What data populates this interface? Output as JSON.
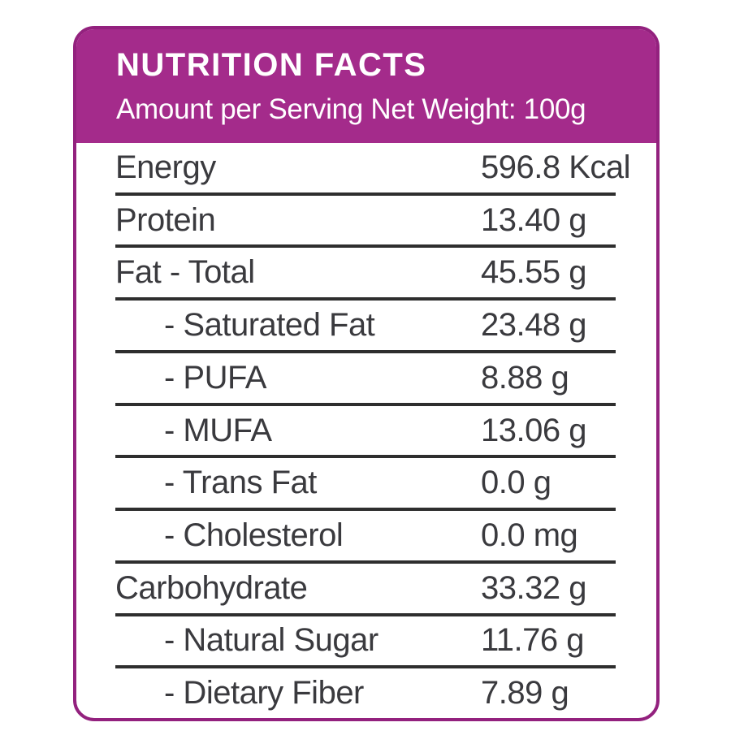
{
  "header": {
    "title": "NUTRITION FACTS",
    "subtitle": "Amount per Serving Net Weight: 100g"
  },
  "table": {
    "rows": [
      {
        "label": "Energy",
        "value": "596.8 Kcal",
        "indent": false
      },
      {
        "label": "Protein",
        "value": "13.40 g",
        "indent": false
      },
      {
        "label": "Fat - Total",
        "value": "45.55 g",
        "indent": false
      },
      {
        "label": "- Saturated Fat",
        "value": "23.48 g",
        "indent": true
      },
      {
        "label": "- PUFA",
        "value": "8.88 g",
        "indent": true
      },
      {
        "label": "- MUFA",
        "value": "13.06 g",
        "indent": true
      },
      {
        "label": "- Trans Fat",
        "value": "0.0 g",
        "indent": true
      },
      {
        "label": "- Cholesterol",
        "value": "0.0 mg",
        "indent": true
      },
      {
        "label": "Carbohydrate",
        "value": "33.32 g",
        "indent": false
      },
      {
        "label": "- Natural Sugar",
        "value": "11.76 g",
        "indent": true
      },
      {
        "label": "- Dietary Fiber",
        "value": "7.89 g",
        "indent": true
      }
    ]
  },
  "colors": {
    "header_bg": "#A42B8B",
    "card_border": "#93217E",
    "divider": "#2E2E2E",
    "text": "#3A3A3E",
    "header_text": "#FFFFFF"
  }
}
